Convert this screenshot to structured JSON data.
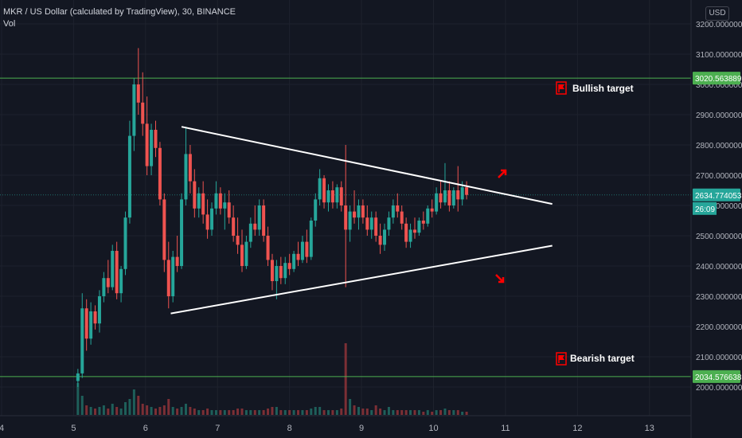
{
  "legend": {
    "symbol_line": "MKR / US Dollar (calculated by TradingView), 30, BINANCE",
    "volume_label": "Vol"
  },
  "currency_button": "USD",
  "colors": {
    "background": "#131722",
    "up": "#26a69a",
    "down": "#ef5350",
    "hline": "#4caf50",
    "trendline": "#ffffff",
    "annotation": "#ff0000",
    "axis_text": "#b2b5be",
    "grid": "#1e222d"
  },
  "annotations": {
    "bullish": "Bullish target",
    "bearish": "Bearish target",
    "bullish_icon": "flag-icon",
    "bearish_icon": "flag-icon",
    "up_arrow_icon": "arrow-up-right-icon",
    "down_arrow_icon": "arrow-down-right-icon"
  },
  "price_labels": {
    "upper": "3020.563889",
    "current": "2634.774053",
    "countdown": "26:09",
    "lower": "2034.576638"
  },
  "chart_data": {
    "type": "candlestick",
    "title": "MKR / US Dollar (calculated by TradingView), 30, BINANCE",
    "y_axis": {
      "ticks": [
        "3200.000000",
        "3100.000000",
        "3000.000000",
        "2900.000000",
        "2800.000000",
        "2700.000000",
        "2600.000000",
        "2500.000000",
        "2400.000000",
        "2300.000000",
        "2200.000000",
        "2100.000000",
        "2000.000000"
      ],
      "tick_values": [
        3200,
        3100,
        3000,
        2900,
        2800,
        2700,
        2600,
        2500,
        2400,
        2300,
        2200,
        2100,
        2000
      ],
      "range": [
        1920,
        3265
      ]
    },
    "x_axis": {
      "ticks": [
        "4",
        "5",
        "6",
        "7",
        "8",
        "9",
        "10",
        "11",
        "12",
        "13"
      ],
      "tick_values": [
        4,
        5,
        6,
        7,
        8,
        9,
        10,
        11,
        12,
        13
      ],
      "range": [
        4,
        13.6
      ]
    },
    "horizontal_levels": [
      3020.563889,
      2034.576638
    ],
    "current_price": 2634.774053,
    "trendlines": [
      {
        "x": [
          6.5,
          11.65
        ],
        "y": [
          2860,
          2605
        ]
      },
      {
        "x": [
          6.35,
          11.65
        ],
        "y": [
          2243,
          2467
        ]
      }
    ],
    "candles": [
      {
        "d": 5.06,
        "o": 2020,
        "h": 2060,
        "l": 2000,
        "c": 2045
      },
      {
        "d": 5.12,
        "o": 2045,
        "h": 2310,
        "l": 2030,
        "c": 2260
      },
      {
        "d": 5.18,
        "o": 2260,
        "h": 2290,
        "l": 2120,
        "c": 2160
      },
      {
        "d": 5.24,
        "o": 2160,
        "h": 2280,
        "l": 2140,
        "c": 2250
      },
      {
        "d": 5.3,
        "o": 2250,
        "h": 2270,
        "l": 2190,
        "c": 2210
      },
      {
        "d": 5.36,
        "o": 2210,
        "h": 2320,
        "l": 2180,
        "c": 2300
      },
      {
        "d": 5.42,
        "o": 2300,
        "h": 2380,
        "l": 2280,
        "c": 2360
      },
      {
        "d": 5.48,
        "o": 2360,
        "h": 2420,
        "l": 2310,
        "c": 2330
      },
      {
        "d": 5.54,
        "o": 2330,
        "h": 2470,
        "l": 2320,
        "c": 2450
      },
      {
        "d": 5.6,
        "o": 2450,
        "h": 2480,
        "l": 2290,
        "c": 2310
      },
      {
        "d": 5.66,
        "o": 2310,
        "h": 2400,
        "l": 2280,
        "c": 2390
      },
      {
        "d": 5.72,
        "o": 2390,
        "h": 2580,
        "l": 2370,
        "c": 2560
      },
      {
        "d": 5.78,
        "o": 2560,
        "h": 2880,
        "l": 2540,
        "c": 2830
      },
      {
        "d": 5.84,
        "o": 2830,
        "h": 3020,
        "l": 2780,
        "c": 3000
      },
      {
        "d": 5.9,
        "o": 3000,
        "h": 3120,
        "l": 2900,
        "c": 2940
      },
      {
        "d": 5.96,
        "o": 2940,
        "h": 3040,
        "l": 2830,
        "c": 2870
      },
      {
        "d": 6.02,
        "o": 2870,
        "h": 2960,
        "l": 2700,
        "c": 2730
      },
      {
        "d": 6.08,
        "o": 2730,
        "h": 2870,
        "l": 2700,
        "c": 2850
      },
      {
        "d": 6.14,
        "o": 2850,
        "h": 2880,
        "l": 2760,
        "c": 2790
      },
      {
        "d": 6.2,
        "o": 2790,
        "h": 2810,
        "l": 2600,
        "c": 2620
      },
      {
        "d": 6.26,
        "o": 2620,
        "h": 2640,
        "l": 2380,
        "c": 2420
      },
      {
        "d": 6.32,
        "o": 2420,
        "h": 2480,
        "l": 2260,
        "c": 2300
      },
      {
        "d": 6.38,
        "o": 2300,
        "h": 2450,
        "l": 2280,
        "c": 2430
      },
      {
        "d": 6.44,
        "o": 2430,
        "h": 2500,
        "l": 2380,
        "c": 2400
      },
      {
        "d": 6.5,
        "o": 2400,
        "h": 2640,
        "l": 2390,
        "c": 2620
      },
      {
        "d": 6.56,
        "o": 2620,
        "h": 2860,
        "l": 2600,
        "c": 2770
      },
      {
        "d": 6.62,
        "o": 2770,
        "h": 2800,
        "l": 2640,
        "c": 2680
      },
      {
        "d": 6.68,
        "o": 2680,
        "h": 2720,
        "l": 2560,
        "c": 2590
      },
      {
        "d": 6.74,
        "o": 2590,
        "h": 2660,
        "l": 2560,
        "c": 2640
      },
      {
        "d": 6.8,
        "o": 2640,
        "h": 2680,
        "l": 2540,
        "c": 2570
      },
      {
        "d": 6.86,
        "o": 2570,
        "h": 2620,
        "l": 2490,
        "c": 2520
      },
      {
        "d": 6.92,
        "o": 2520,
        "h": 2610,
        "l": 2500,
        "c": 2590
      },
      {
        "d": 6.98,
        "o": 2590,
        "h": 2680,
        "l": 2570,
        "c": 2640
      },
      {
        "d": 7.04,
        "o": 2640,
        "h": 2660,
        "l": 2570,
        "c": 2590
      },
      {
        "d": 7.1,
        "o": 2590,
        "h": 2640,
        "l": 2520,
        "c": 2610
      },
      {
        "d": 7.16,
        "o": 2610,
        "h": 2650,
        "l": 2540,
        "c": 2560
      },
      {
        "d": 7.22,
        "o": 2560,
        "h": 2600,
        "l": 2480,
        "c": 2500
      },
      {
        "d": 7.28,
        "o": 2500,
        "h": 2560,
        "l": 2440,
        "c": 2470
      },
      {
        "d": 7.34,
        "o": 2470,
        "h": 2520,
        "l": 2380,
        "c": 2400
      },
      {
        "d": 7.4,
        "o": 2400,
        "h": 2500,
        "l": 2390,
        "c": 2480
      },
      {
        "d": 7.46,
        "o": 2480,
        "h": 2560,
        "l": 2460,
        "c": 2540
      },
      {
        "d": 7.52,
        "o": 2540,
        "h": 2600,
        "l": 2500,
        "c": 2520
      },
      {
        "d": 7.58,
        "o": 2520,
        "h": 2620,
        "l": 2500,
        "c": 2600
      },
      {
        "d": 7.64,
        "o": 2600,
        "h": 2620,
        "l": 2480,
        "c": 2500
      },
      {
        "d": 7.7,
        "o": 2500,
        "h": 2530,
        "l": 2400,
        "c": 2420
      },
      {
        "d": 7.76,
        "o": 2420,
        "h": 2440,
        "l": 2320,
        "c": 2350
      },
      {
        "d": 7.82,
        "o": 2350,
        "h": 2420,
        "l": 2290,
        "c": 2400
      },
      {
        "d": 7.88,
        "o": 2400,
        "h": 2430,
        "l": 2340,
        "c": 2360
      },
      {
        "d": 7.94,
        "o": 2360,
        "h": 2430,
        "l": 2340,
        "c": 2410
      },
      {
        "d": 8.0,
        "o": 2410,
        "h": 2440,
        "l": 2370,
        "c": 2390
      },
      {
        "d": 8.06,
        "o": 2390,
        "h": 2450,
        "l": 2380,
        "c": 2440
      },
      {
        "d": 8.12,
        "o": 2440,
        "h": 2480,
        "l": 2400,
        "c": 2420
      },
      {
        "d": 8.18,
        "o": 2420,
        "h": 2500,
        "l": 2410,
        "c": 2480
      },
      {
        "d": 8.24,
        "o": 2480,
        "h": 2520,
        "l": 2410,
        "c": 2430
      },
      {
        "d": 8.3,
        "o": 2430,
        "h": 2560,
        "l": 2420,
        "c": 2550
      },
      {
        "d": 8.36,
        "o": 2550,
        "h": 2640,
        "l": 2530,
        "c": 2620
      },
      {
        "d": 8.42,
        "o": 2620,
        "h": 2720,
        "l": 2600,
        "c": 2690
      },
      {
        "d": 8.48,
        "o": 2690,
        "h": 2700,
        "l": 2590,
        "c": 2610
      },
      {
        "d": 8.54,
        "o": 2610,
        "h": 2670,
        "l": 2580,
        "c": 2650
      },
      {
        "d": 8.6,
        "o": 2650,
        "h": 2680,
        "l": 2590,
        "c": 2610
      },
      {
        "d": 8.66,
        "o": 2610,
        "h": 2670,
        "l": 2590,
        "c": 2660
      },
      {
        "d": 8.72,
        "o": 2660,
        "h": 2680,
        "l": 2580,
        "c": 2600
      },
      {
        "d": 8.78,
        "o": 2600,
        "h": 2800,
        "l": 2330,
        "c": 2520
      },
      {
        "d": 8.84,
        "o": 2520,
        "h": 2600,
        "l": 2480,
        "c": 2580
      },
      {
        "d": 8.9,
        "o": 2580,
        "h": 2650,
        "l": 2540,
        "c": 2560
      },
      {
        "d": 8.96,
        "o": 2560,
        "h": 2620,
        "l": 2520,
        "c": 2600
      },
      {
        "d": 9.02,
        "o": 2600,
        "h": 2620,
        "l": 2540,
        "c": 2560
      },
      {
        "d": 9.08,
        "o": 2560,
        "h": 2600,
        "l": 2500,
        "c": 2520
      },
      {
        "d": 9.14,
        "o": 2520,
        "h": 2580,
        "l": 2490,
        "c": 2560
      },
      {
        "d": 9.2,
        "o": 2560,
        "h": 2580,
        "l": 2480,
        "c": 2500
      },
      {
        "d": 9.26,
        "o": 2500,
        "h": 2540,
        "l": 2440,
        "c": 2470
      },
      {
        "d": 9.32,
        "o": 2470,
        "h": 2540,
        "l": 2450,
        "c": 2520
      },
      {
        "d": 9.38,
        "o": 2520,
        "h": 2580,
        "l": 2500,
        "c": 2560
      },
      {
        "d": 9.44,
        "o": 2560,
        "h": 2620,
        "l": 2540,
        "c": 2600
      },
      {
        "d": 9.5,
        "o": 2600,
        "h": 2640,
        "l": 2560,
        "c": 2580
      },
      {
        "d": 9.56,
        "o": 2580,
        "h": 2600,
        "l": 2520,
        "c": 2540
      },
      {
        "d": 9.62,
        "o": 2540,
        "h": 2560,
        "l": 2460,
        "c": 2480
      },
      {
        "d": 9.68,
        "o": 2480,
        "h": 2540,
        "l": 2460,
        "c": 2520
      },
      {
        "d": 9.74,
        "o": 2520,
        "h": 2560,
        "l": 2490,
        "c": 2510
      },
      {
        "d": 9.8,
        "o": 2510,
        "h": 2560,
        "l": 2500,
        "c": 2550
      },
      {
        "d": 9.86,
        "o": 2550,
        "h": 2580,
        "l": 2520,
        "c": 2540
      },
      {
        "d": 9.92,
        "o": 2540,
        "h": 2600,
        "l": 2530,
        "c": 2590
      },
      {
        "d": 9.98,
        "o": 2590,
        "h": 2620,
        "l": 2560,
        "c": 2580
      },
      {
        "d": 10.04,
        "o": 2580,
        "h": 2660,
        "l": 2570,
        "c": 2640
      },
      {
        "d": 10.1,
        "o": 2640,
        "h": 2680,
        "l": 2590,
        "c": 2610
      },
      {
        "d": 10.16,
        "o": 2610,
        "h": 2740,
        "l": 2600,
        "c": 2650
      },
      {
        "d": 10.22,
        "o": 2650,
        "h": 2680,
        "l": 2580,
        "c": 2600
      },
      {
        "d": 10.28,
        "o": 2600,
        "h": 2660,
        "l": 2590,
        "c": 2650
      },
      {
        "d": 10.34,
        "o": 2650,
        "h": 2730,
        "l": 2580,
        "c": 2620
      },
      {
        "d": 10.4,
        "o": 2620,
        "h": 2680,
        "l": 2600,
        "c": 2660
      },
      {
        "d": 10.46,
        "o": 2660,
        "h": 2680,
        "l": 2620,
        "c": 2635
      }
    ],
    "volume": [
      {
        "d": 5.06,
        "v": 2.0
      },
      {
        "d": 5.12,
        "v": 1.2
      },
      {
        "d": 5.18,
        "v": 0.6
      },
      {
        "d": 5.24,
        "v": 0.5
      },
      {
        "d": 5.3,
        "v": 0.4
      },
      {
        "d": 5.36,
        "v": 0.5
      },
      {
        "d": 5.42,
        "v": 0.6
      },
      {
        "d": 5.48,
        "v": 0.4
      },
      {
        "d": 5.54,
        "v": 0.7
      },
      {
        "d": 5.6,
        "v": 0.5
      },
      {
        "d": 5.66,
        "v": 0.4
      },
      {
        "d": 5.72,
        "v": 0.8
      },
      {
        "d": 5.78,
        "v": 1.0
      },
      {
        "d": 5.84,
        "v": 1.6
      },
      {
        "d": 5.9,
        "v": 1.2
      },
      {
        "d": 5.96,
        "v": 0.7
      },
      {
        "d": 6.02,
        "v": 0.6
      },
      {
        "d": 6.08,
        "v": 0.5
      },
      {
        "d": 6.14,
        "v": 0.4
      },
      {
        "d": 6.2,
        "v": 0.5
      },
      {
        "d": 6.26,
        "v": 0.6
      },
      {
        "d": 6.32,
        "v": 1.0
      },
      {
        "d": 6.38,
        "v": 0.5
      },
      {
        "d": 6.44,
        "v": 0.4
      },
      {
        "d": 6.5,
        "v": 0.5
      },
      {
        "d": 6.56,
        "v": 0.7
      },
      {
        "d": 6.62,
        "v": 0.5
      },
      {
        "d": 6.68,
        "v": 0.4
      },
      {
        "d": 6.74,
        "v": 0.3
      },
      {
        "d": 6.8,
        "v": 0.3
      },
      {
        "d": 6.86,
        "v": 0.4
      },
      {
        "d": 6.92,
        "v": 0.3
      },
      {
        "d": 6.98,
        "v": 0.3
      },
      {
        "d": 7.04,
        "v": 0.3
      },
      {
        "d": 7.1,
        "v": 0.3
      },
      {
        "d": 7.16,
        "v": 0.3
      },
      {
        "d": 7.22,
        "v": 0.3
      },
      {
        "d": 7.28,
        "v": 0.4
      },
      {
        "d": 7.34,
        "v": 0.4
      },
      {
        "d": 7.4,
        "v": 0.3
      },
      {
        "d": 7.46,
        "v": 0.3
      },
      {
        "d": 7.52,
        "v": 0.3
      },
      {
        "d": 7.58,
        "v": 0.3
      },
      {
        "d": 7.64,
        "v": 0.3
      },
      {
        "d": 7.7,
        "v": 0.4
      },
      {
        "d": 7.76,
        "v": 0.5
      },
      {
        "d": 7.82,
        "v": 0.5
      },
      {
        "d": 7.88,
        "v": 0.3
      },
      {
        "d": 7.94,
        "v": 0.3
      },
      {
        "d": 8.0,
        "v": 0.3
      },
      {
        "d": 8.06,
        "v": 0.3
      },
      {
        "d": 8.12,
        "v": 0.3
      },
      {
        "d": 8.18,
        "v": 0.3
      },
      {
        "d": 8.24,
        "v": 0.3
      },
      {
        "d": 8.3,
        "v": 0.4
      },
      {
        "d": 8.36,
        "v": 0.5
      },
      {
        "d": 8.42,
        "v": 0.5
      },
      {
        "d": 8.48,
        "v": 0.3
      },
      {
        "d": 8.54,
        "v": 0.3
      },
      {
        "d": 8.6,
        "v": 0.3
      },
      {
        "d": 8.66,
        "v": 0.3
      },
      {
        "d": 8.72,
        "v": 0.4
      },
      {
        "d": 8.78,
        "v": 4.5
      },
      {
        "d": 8.84,
        "v": 1.0
      },
      {
        "d": 8.9,
        "v": 0.6
      },
      {
        "d": 8.96,
        "v": 0.5
      },
      {
        "d": 9.02,
        "v": 0.4
      },
      {
        "d": 9.08,
        "v": 0.4
      },
      {
        "d": 9.14,
        "v": 0.3
      },
      {
        "d": 9.2,
        "v": 0.6
      },
      {
        "d": 9.26,
        "v": 0.4
      },
      {
        "d": 9.32,
        "v": 0.3
      },
      {
        "d": 9.38,
        "v": 0.5
      },
      {
        "d": 9.44,
        "v": 0.3
      },
      {
        "d": 9.5,
        "v": 0.3
      },
      {
        "d": 9.56,
        "v": 0.3
      },
      {
        "d": 9.62,
        "v": 0.3
      },
      {
        "d": 9.68,
        "v": 0.3
      },
      {
        "d": 9.74,
        "v": 0.3
      },
      {
        "d": 9.8,
        "v": 0.3
      },
      {
        "d": 9.86,
        "v": 0.2
      },
      {
        "d": 9.92,
        "v": 0.3
      },
      {
        "d": 9.98,
        "v": 0.2
      },
      {
        "d": 10.04,
        "v": 0.3
      },
      {
        "d": 10.1,
        "v": 0.3
      },
      {
        "d": 10.16,
        "v": 0.4
      },
      {
        "d": 10.22,
        "v": 0.3
      },
      {
        "d": 10.28,
        "v": 0.3
      },
      {
        "d": 10.34,
        "v": 0.3
      },
      {
        "d": 10.4,
        "v": 0.2
      },
      {
        "d": 10.46,
        "v": 0.2
      }
    ]
  }
}
